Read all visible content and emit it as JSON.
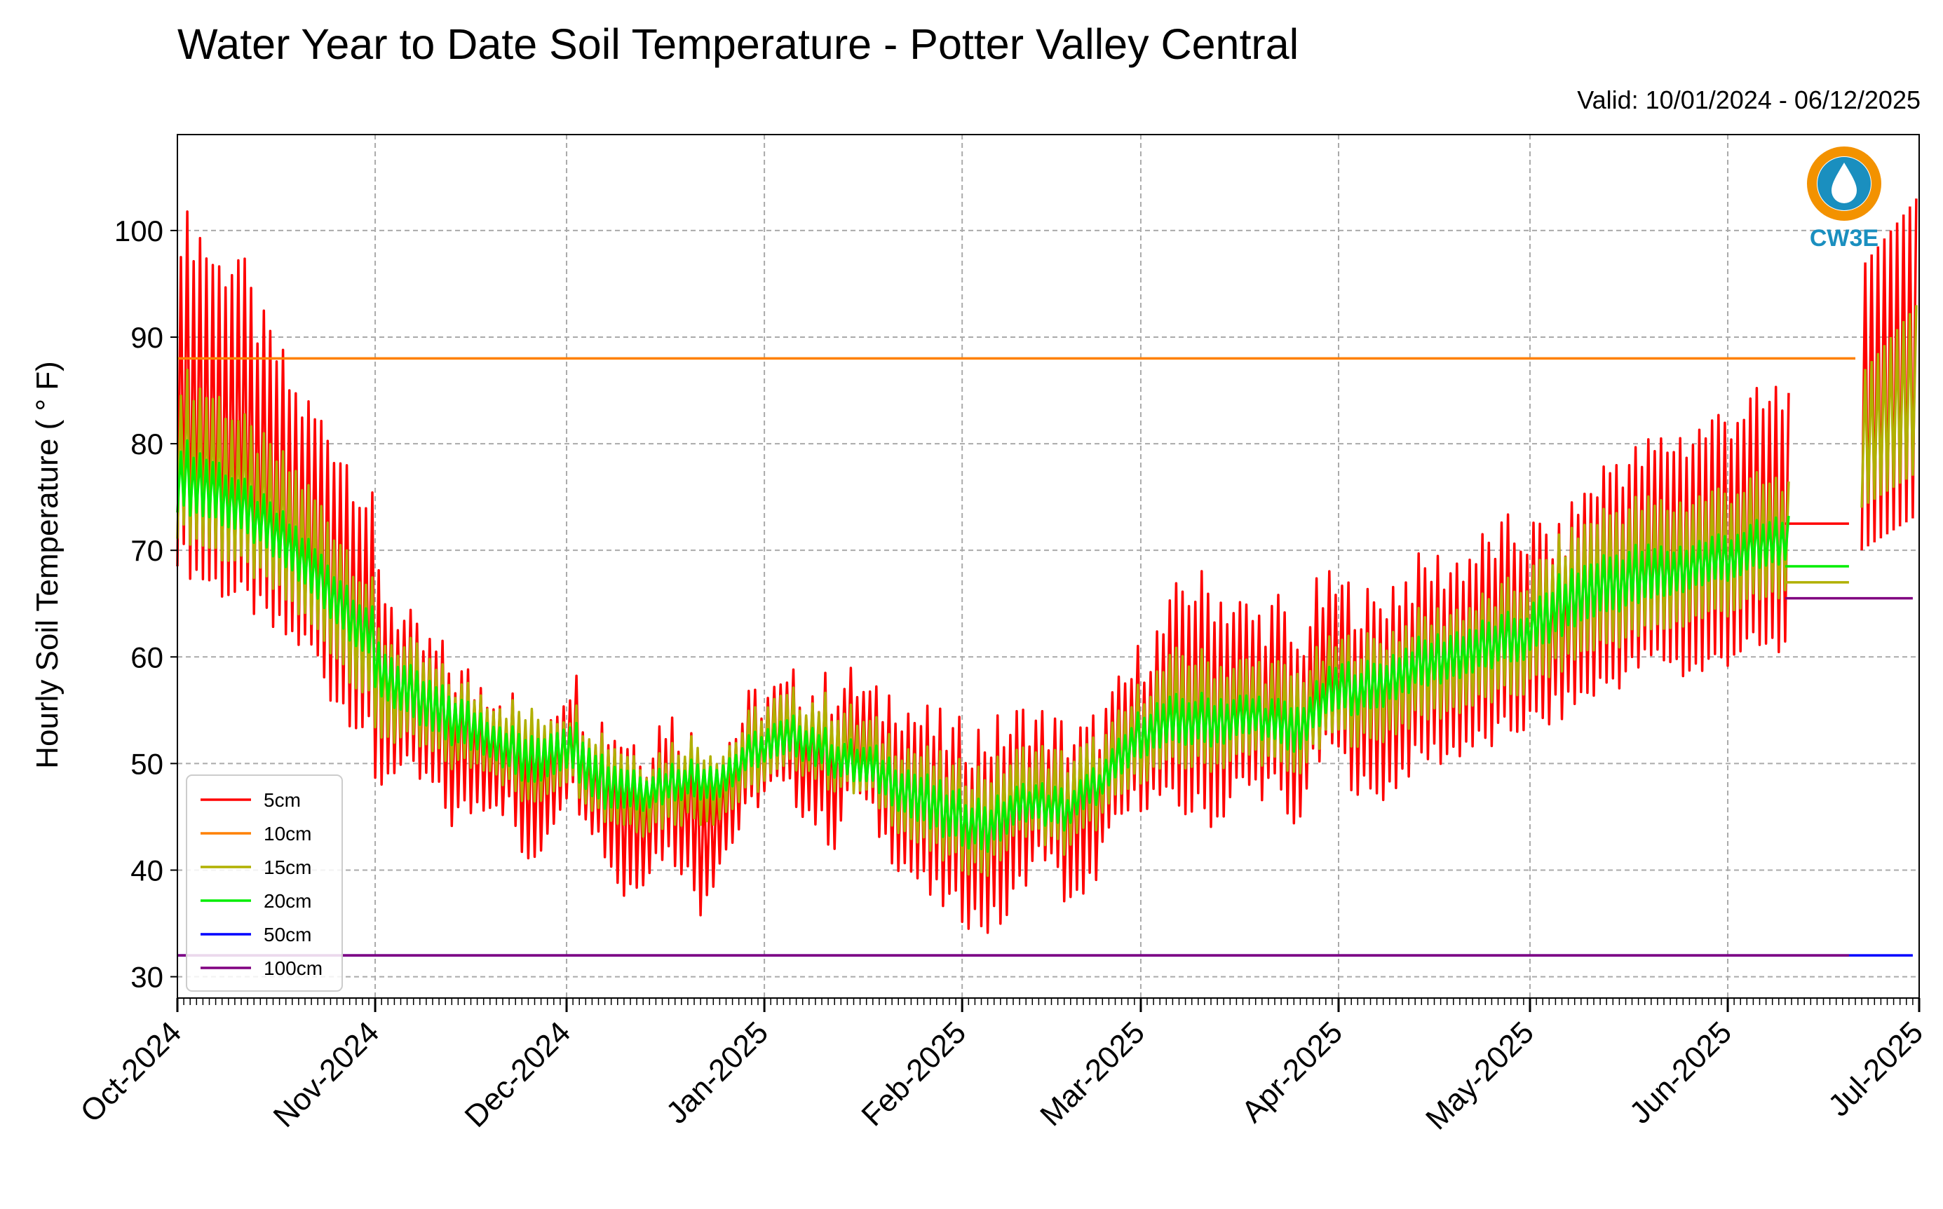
{
  "chart_data": {
    "type": "line",
    "title": "Water Year to Date Soil Temperature - Potter Valley Central",
    "subtitle": "Valid: 10/01/2024 - 06/12/2025",
    "ylabel": "Hourly Soil Temperature ( ° F)",
    "xlabel": "",
    "ylim": [
      28,
      109
    ],
    "xlim": [
      "2024-10-01",
      "2025-07-01"
    ],
    "yticks": [
      30,
      40,
      50,
      60,
      70,
      80,
      90,
      100
    ],
    "xticks": [
      "2024-10-01",
      "2024-11-01",
      "2024-12-01",
      "2025-01-01",
      "2025-02-01",
      "2025-03-01",
      "2025-04-01",
      "2025-05-01",
      "2025-06-01",
      "2025-07-01"
    ],
    "xticklabels": [
      "Oct-2024",
      "Nov-2024",
      "Dec-2024",
      "Jan-2025",
      "Feb-2025",
      "Mar-2025",
      "Apr-2025",
      "May-2025",
      "Jun-2025",
      "Jul-2025"
    ],
    "grid": true,
    "legend_position": "lower-left",
    "x_unit": "days since 2024-10-01",
    "series": [
      {
        "name": "5cm",
        "color": "#ff0000",
        "kind": "diurnal",
        "daily": [
          [
            0,
            70,
            100
          ],
          [
            3,
            68,
            99
          ],
          [
            6,
            67,
            96
          ],
          [
            9,
            66,
            97
          ],
          [
            12,
            65,
            91
          ],
          [
            15,
            63,
            88
          ],
          [
            18,
            62,
            84
          ],
          [
            21,
            61,
            82
          ],
          [
            24,
            57,
            80
          ],
          [
            27,
            55,
            77
          ],
          [
            30,
            53,
            73
          ],
          [
            31,
            48,
            67
          ],
          [
            34,
            50,
            64
          ],
          [
            37,
            49,
            61
          ],
          [
            40,
            48,
            60
          ],
          [
            43,
            45,
            58
          ],
          [
            46,
            46,
            57
          ],
          [
            49,
            47,
            57
          ],
          [
            52,
            46,
            55
          ],
          [
            55,
            40,
            53
          ],
          [
            58,
            44,
            55
          ],
          [
            61,
            48,
            58
          ],
          [
            64,
            46,
            54
          ],
          [
            67,
            42,
            53
          ],
          [
            70,
            38,
            52
          ],
          [
            73,
            40,
            51
          ],
          [
            76,
            42,
            54
          ],
          [
            79,
            41,
            52
          ],
          [
            82,
            37,
            51
          ],
          [
            85,
            41,
            51
          ],
          [
            88,
            44,
            54
          ],
          [
            91,
            47,
            56
          ],
          [
            94,
            48,
            56
          ],
          [
            97,
            47,
            57
          ],
          [
            100,
            45,
            56
          ],
          [
            103,
            43,
            57
          ],
          [
            106,
            48,
            57
          ],
          [
            109,
            45,
            55
          ],
          [
            112,
            42,
            56
          ],
          [
            115,
            40,
            54
          ],
          [
            118,
            38,
            53
          ],
          [
            121,
            37,
            52
          ],
          [
            124,
            36,
            52
          ],
          [
            127,
            35,
            52
          ],
          [
            130,
            36,
            53
          ],
          [
            133,
            40,
            54
          ],
          [
            136,
            42,
            53
          ],
          [
            139,
            38,
            52
          ],
          [
            142,
            37,
            52
          ],
          [
            145,
            42,
            54
          ],
          [
            148,
            45,
            57
          ],
          [
            151,
            47,
            60
          ],
          [
            154,
            47,
            62
          ],
          [
            157,
            46,
            66
          ],
          [
            160,
            46,
            66
          ],
          [
            163,
            45,
            65
          ],
          [
            166,
            48,
            64
          ],
          [
            169,
            48,
            63
          ],
          [
            172,
            48,
            64
          ],
          [
            175,
            44,
            60
          ],
          [
            178,
            50,
            65
          ],
          [
            181,
            52,
            66
          ],
          [
            184,
            49,
            65
          ],
          [
            187,
            47,
            64
          ],
          [
            190,
            48,
            66
          ],
          [
            193,
            50,
            67
          ],
          [
            196,
            51,
            68
          ],
          [
            199,
            51,
            68
          ],
          [
            202,
            52,
            69
          ],
          [
            205,
            52,
            70
          ],
          [
            208,
            53,
            71
          ],
          [
            211,
            54,
            71
          ],
          [
            214,
            54,
            71
          ],
          [
            216,
            55,
            70
          ],
          [
            219,
            56,
            74
          ],
          [
            222,
            57,
            76
          ],
          [
            225,
            58,
            78
          ],
          [
            228,
            59,
            78
          ],
          [
            231,
            60,
            79
          ],
          [
            234,
            60,
            80
          ],
          [
            236,
            59,
            80
          ],
          [
            239,
            59,
            81
          ],
          [
            242,
            60,
            82
          ],
          [
            245,
            61,
            83
          ],
          [
            248,
            61,
            83
          ],
          [
            250,
            61,
            84
          ],
          [
            252,
            61,
            84
          ]
        ],
        "period": [
          [
            264,
            272,
            70,
            103
          ]
        ],
        "flat": [
          [
            252,
            262,
            72.5
          ]
        ]
      },
      {
        "name": "10cm",
        "color": "#ff8000",
        "kind": "flat",
        "flat": [
          [
            0,
            263,
            88
          ]
        ]
      },
      {
        "name": "15cm",
        "color": "#b0b000",
        "kind": "diurnal",
        "daily": [
          [
            0,
            72,
            86
          ],
          [
            6,
            70,
            84
          ],
          [
            12,
            68,
            80
          ],
          [
            18,
            65,
            77
          ],
          [
            24,
            61,
            72
          ],
          [
            30,
            56,
            66
          ],
          [
            31,
            53,
            62
          ],
          [
            37,
            52,
            60
          ],
          [
            43,
            50,
            57
          ],
          [
            49,
            50,
            56
          ],
          [
            55,
            46,
            54
          ],
          [
            61,
            49,
            55
          ],
          [
            67,
            45,
            52
          ],
          [
            73,
            44,
            50
          ],
          [
            79,
            45,
            52
          ],
          [
            85,
            45,
            51
          ],
          [
            91,
            48,
            55
          ],
          [
            97,
            50,
            56
          ],
          [
            103,
            48,
            55
          ],
          [
            109,
            47,
            53
          ],
          [
            115,
            43,
            51
          ],
          [
            121,
            41,
            49
          ],
          [
            127,
            40,
            49
          ],
          [
            133,
            44,
            51
          ],
          [
            139,
            42,
            50
          ],
          [
            145,
            45,
            52
          ],
          [
            151,
            49,
            57
          ],
          [
            157,
            50,
            60
          ],
          [
            163,
            50,
            59
          ],
          [
            169,
            51,
            59
          ],
          [
            175,
            49,
            58
          ],
          [
            181,
            53,
            61
          ],
          [
            187,
            52,
            61
          ],
          [
            193,
            54,
            63
          ],
          [
            199,
            55,
            64
          ],
          [
            205,
            56,
            65
          ],
          [
            211,
            57,
            67
          ],
          [
            216,
            59,
            70
          ],
          [
            222,
            61,
            73
          ],
          [
            228,
            62,
            74
          ],
          [
            234,
            63,
            74
          ],
          [
            240,
            64,
            75
          ],
          [
            246,
            65,
            76
          ],
          [
            252,
            66,
            76
          ]
        ],
        "period": [
          [
            264,
            272,
            74,
            93
          ]
        ],
        "flat": [
          [
            252,
            262,
            67
          ]
        ]
      },
      {
        "name": "20cm",
        "color": "#00ee00",
        "kind": "diurnal",
        "daily": [
          [
            0,
            74,
            80
          ],
          [
            6,
            73,
            78
          ],
          [
            12,
            71,
            75
          ],
          [
            18,
            68,
            72
          ],
          [
            24,
            64,
            68
          ],
          [
            30,
            60,
            64
          ],
          [
            31,
            57,
            61
          ],
          [
            37,
            54,
            58
          ],
          [
            43,
            52,
            56
          ],
          [
            49,
            51,
            54
          ],
          [
            55,
            48,
            52
          ],
          [
            61,
            50,
            54
          ],
          [
            67,
            46,
            50
          ],
          [
            73,
            46,
            49
          ],
          [
            79,
            47,
            50
          ],
          [
            85,
            47,
            50
          ],
          [
            91,
            50,
            53
          ],
          [
            97,
            51,
            54
          ],
          [
            103,
            49,
            52
          ],
          [
            109,
            48,
            51
          ],
          [
            115,
            45,
            49
          ],
          [
            121,
            43,
            47
          ],
          [
            127,
            42,
            46
          ],
          [
            133,
            45,
            48
          ],
          [
            139,
            44,
            47
          ],
          [
            145,
            47,
            50
          ],
          [
            151,
            51,
            55
          ],
          [
            157,
            52,
            56
          ],
          [
            163,
            52,
            56
          ],
          [
            169,
            53,
            56
          ],
          [
            175,
            51,
            55
          ],
          [
            181,
            55,
            59
          ],
          [
            187,
            55,
            59
          ],
          [
            193,
            57,
            61
          ],
          [
            199,
            58,
            62
          ],
          [
            205,
            59,
            63
          ],
          [
            211,
            60,
            64
          ],
          [
            216,
            62,
            67
          ],
          [
            222,
            64,
            69
          ],
          [
            228,
            65,
            70
          ],
          [
            234,
            66,
            70
          ],
          [
            240,
            67,
            71
          ],
          [
            246,
            68,
            72
          ],
          [
            252,
            69,
            73
          ]
        ],
        "period": [],
        "flat": [
          [
            252,
            262,
            68.5
          ]
        ]
      },
      {
        "name": "50cm",
        "color": "#0000ff",
        "kind": "flat",
        "flat": [
          [
            0,
            272,
            32
          ]
        ]
      },
      {
        "name": "100cm",
        "color": "#800080",
        "kind": "flat",
        "flat": [
          [
            0,
            262,
            32
          ],
          [
            252,
            272,
            65.5
          ]
        ]
      }
    ]
  },
  "logo": {
    "text": "CW3E",
    "ring_color": "#f39200",
    "text_color": "#1a8fbf"
  }
}
